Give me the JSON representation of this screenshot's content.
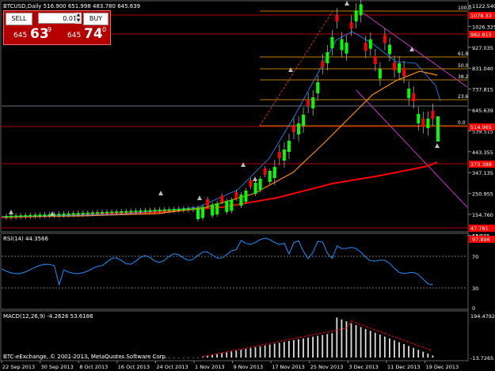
{
  "header": {
    "symbol_info": "BTCUSD,Daily  516.900 651.998 483.780 645.639"
  },
  "trade_panel": {
    "sell_label": "SELL",
    "buy_label": "BUY",
    "lot": "0.01",
    "sell_price": {
      "small": "645",
      "big": "63",
      "sup": "9"
    },
    "buy_price": {
      "small": "645",
      "big": "74",
      "sup": "0"
    }
  },
  "price_axis": {
    "ticks": [
      "1122.540",
      "1026.325",
      "927.035",
      "831.040",
      "737.815",
      "645.639",
      "539.515",
      "443.355",
      "347.135",
      "250.955",
      "154.760",
      "61.985"
    ],
    "highlight_labels": [
      "1078.33",
      "982.815",
      "514.965",
      "373.388",
      "47.781"
    ],
    "fib_labels": [
      "100.0",
      "61.8",
      "50.0",
      "38.2",
      "23.6",
      "0.0"
    ]
  },
  "rsi": {
    "label": "RSI(14) 44.3566",
    "ticks": [
      "100",
      "70",
      "30",
      "0"
    ],
    "top_label": "97.896"
  },
  "macd": {
    "label": "MACD(12,26,9) -4.2626 53.6186",
    "ticks": [
      "194.4792",
      "-13.7265"
    ]
  },
  "footer": {
    "copyright": "BTC-eExchange, © 2001-2013, MetaQuotes Software Corp."
  },
  "time_axis": {
    "labels": [
      "22 Sep 2013",
      "30 Sep 2013",
      "8 Oct 2013",
      "16 Oct 2013",
      "24 Oct 2013",
      "1 Nov 2013",
      "9 Nov 2013",
      "17 Nov 2013",
      "25 Nov 2013",
      "3 Dec 2013",
      "11 Dec 2013",
      "19 Dec 2013"
    ]
  },
  "colors": {
    "bull": "#00ff00",
    "bear": "#ff0000",
    "fib": "#ffa500",
    "ma_slow": "#ff0000",
    "ma_mid": "#ff8c00",
    "ma_fast": "#1e90ff",
    "trend_channel": "#cc33cc",
    "rsi_line": "#1e90ff",
    "highlight_label_bg": "#ff0000"
  }
}
